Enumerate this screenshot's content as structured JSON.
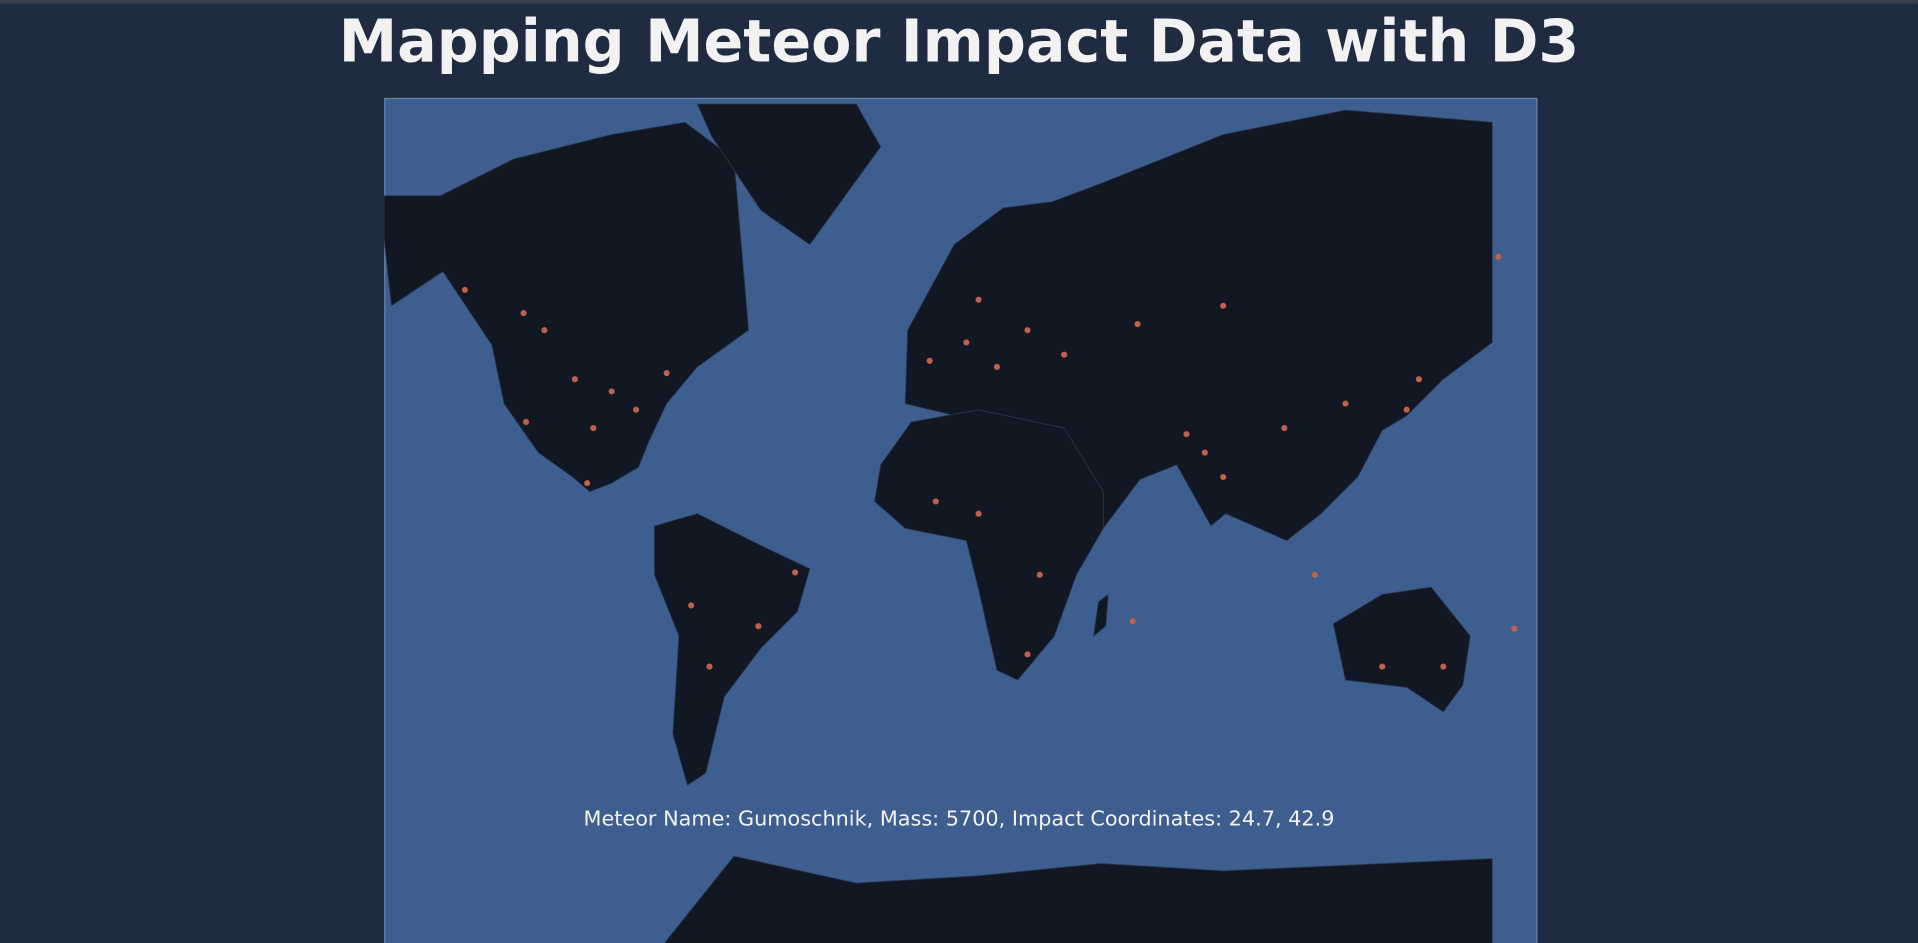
{
  "header": {
    "title": "Mapping Meteor Impact Data with D3"
  },
  "map": {
    "info": "Meteor Name: Gumoschnik, Mass: 5700, Impact Coordinates: 24.7, 42.9"
  }
}
